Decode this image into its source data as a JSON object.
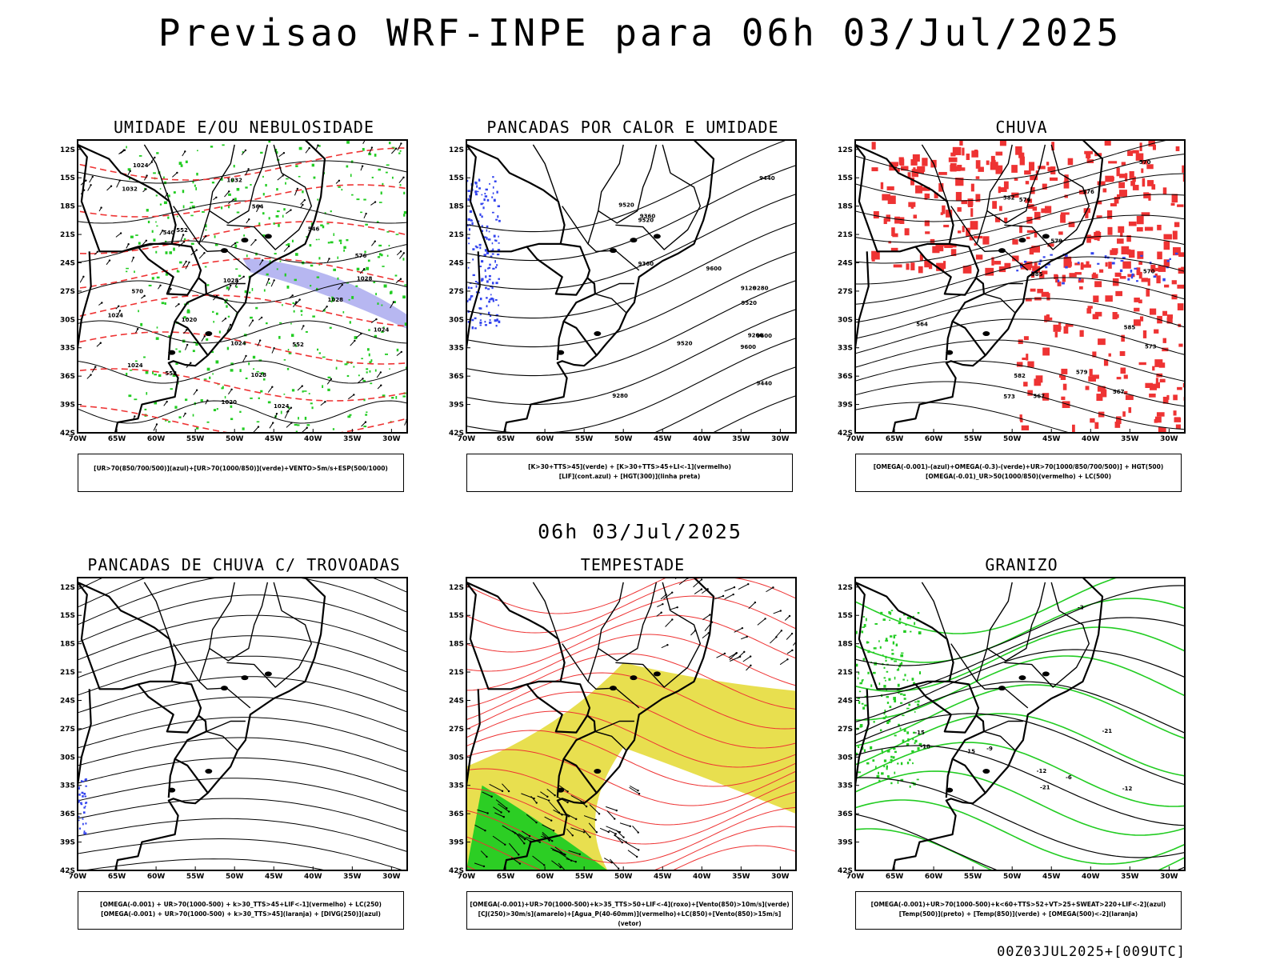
{
  "header": {
    "title": "Previsao WRF-INPE  para 06h 03/Jul/2025"
  },
  "middle_label": "06h 03/Jul/2025",
  "footer": "00Z03JUL2025+[009UTC]",
  "axes": {
    "lat_labels": [
      "12S",
      "15S",
      "18S",
      "21S",
      "24S",
      "27S",
      "30S",
      "33S",
      "36S",
      "39S",
      "42S"
    ],
    "lon_labels": [
      "70W",
      "65W",
      "60W",
      "55W",
      "50W",
      "45W",
      "40W",
      "35W",
      "30W"
    ]
  },
  "colors": {
    "green": "#22cc22",
    "red": "#ee3333",
    "blue": "#3344ee",
    "yellow": "#e6dc3c",
    "lavender": "#aaaaee",
    "black": "#000000"
  },
  "panels": [
    {
      "id": "umidade",
      "title": "UMIDADE E/OU NEBULOSIDADE",
      "legend": [
        "[UR>70(850/700/500)](azul)+[UR>70(1000/850)](verde)+VENTO>5m/s+ESP(500/1000)"
      ],
      "contour_labels": [
        "1020",
        "1024",
        "1028",
        "1032",
        "1028",
        "1024",
        "1020",
        "1024",
        "1024",
        "1032",
        "1028",
        "1024",
        "1028",
        "1024",
        "552",
        "558",
        "564",
        "570",
        "540",
        "546",
        "552",
        "576"
      ]
    },
    {
      "id": "pancadas-calor",
      "title": "PANCADAS POR CALOR E UMIDADE",
      "legend": [
        "[K>30+TTS>45](verde) + [K>30+TTS>45+LI<-1](vermelho)",
        "[LIF](cont.azul) + [HGT(300)](linha preta)"
      ],
      "contour_labels": [
        "9600",
        "9600",
        "9600",
        "9520",
        "9520",
        "9520",
        "9440",
        "9360",
        "9280",
        "9200",
        "9120",
        "9440",
        "9360",
        "9280",
        "9520"
      ]
    },
    {
      "id": "chuva",
      "title": "CHUVA",
      "legend": [
        "[OMEGA(-0.001)-(azul)+OMEGA(-0.3)-(verde)+UR>70(1000/850/700/500)] + HGT(500)",
        "[OMEGA(-0.01)_UR>50(1000/850)(vermelho) + LC(500)"
      ],
      "contour_labels": [
        "585",
        "582",
        "579",
        "576",
        "573",
        "570",
        "567",
        "564",
        "585",
        "582",
        "579",
        "576",
        "573",
        "570",
        "567"
      ]
    },
    {
      "id": "pancadas-trovoadas",
      "title": "PANCADAS DE CHUVA C/ TROVOADAS",
      "legend": [
        "[OMEGA(-0.001) + UR>70(1000-500) + k>30_TTS>45+LIF<-1](vermelho) + LC(250)",
        "[OMEGA(-0.001) + UR>70(1000-500) + k>30_TTS>45](laranja) + [DIVG(250)](azul)"
      ]
    },
    {
      "id": "tempestade",
      "title": "TEMPESTADE",
      "legend": [
        "[OMEGA(-0.001)+UR>70(1000-500)+k>35_TTS>50+LIF<-4](roxo)+[Vento(850)>10m/s](verde)",
        "[CJ(250)>30m/s](amarelo)+[Agua_P(40-60mm)](vermelho)+LC(850)+[Vento(850)>15m/s](vetor)"
      ]
    },
    {
      "id": "granizo",
      "title": "GRANIZO",
      "legend": [
        "[OMEGA(-0.001)+UR>70(1000-500)+k<60+TTS>52+VT>25+SWEAT>220+LIF<-2](azul)",
        "[Temp(500)](preto) + [Temp(850)](verde) + [OMEGA(500)<-2](laranja)"
      ],
      "contour_labels": [
        "-6",
        "-9",
        "-12",
        "-15",
        "-18",
        "-21",
        "-21",
        "-15",
        "-12",
        "-2"
      ]
    }
  ]
}
